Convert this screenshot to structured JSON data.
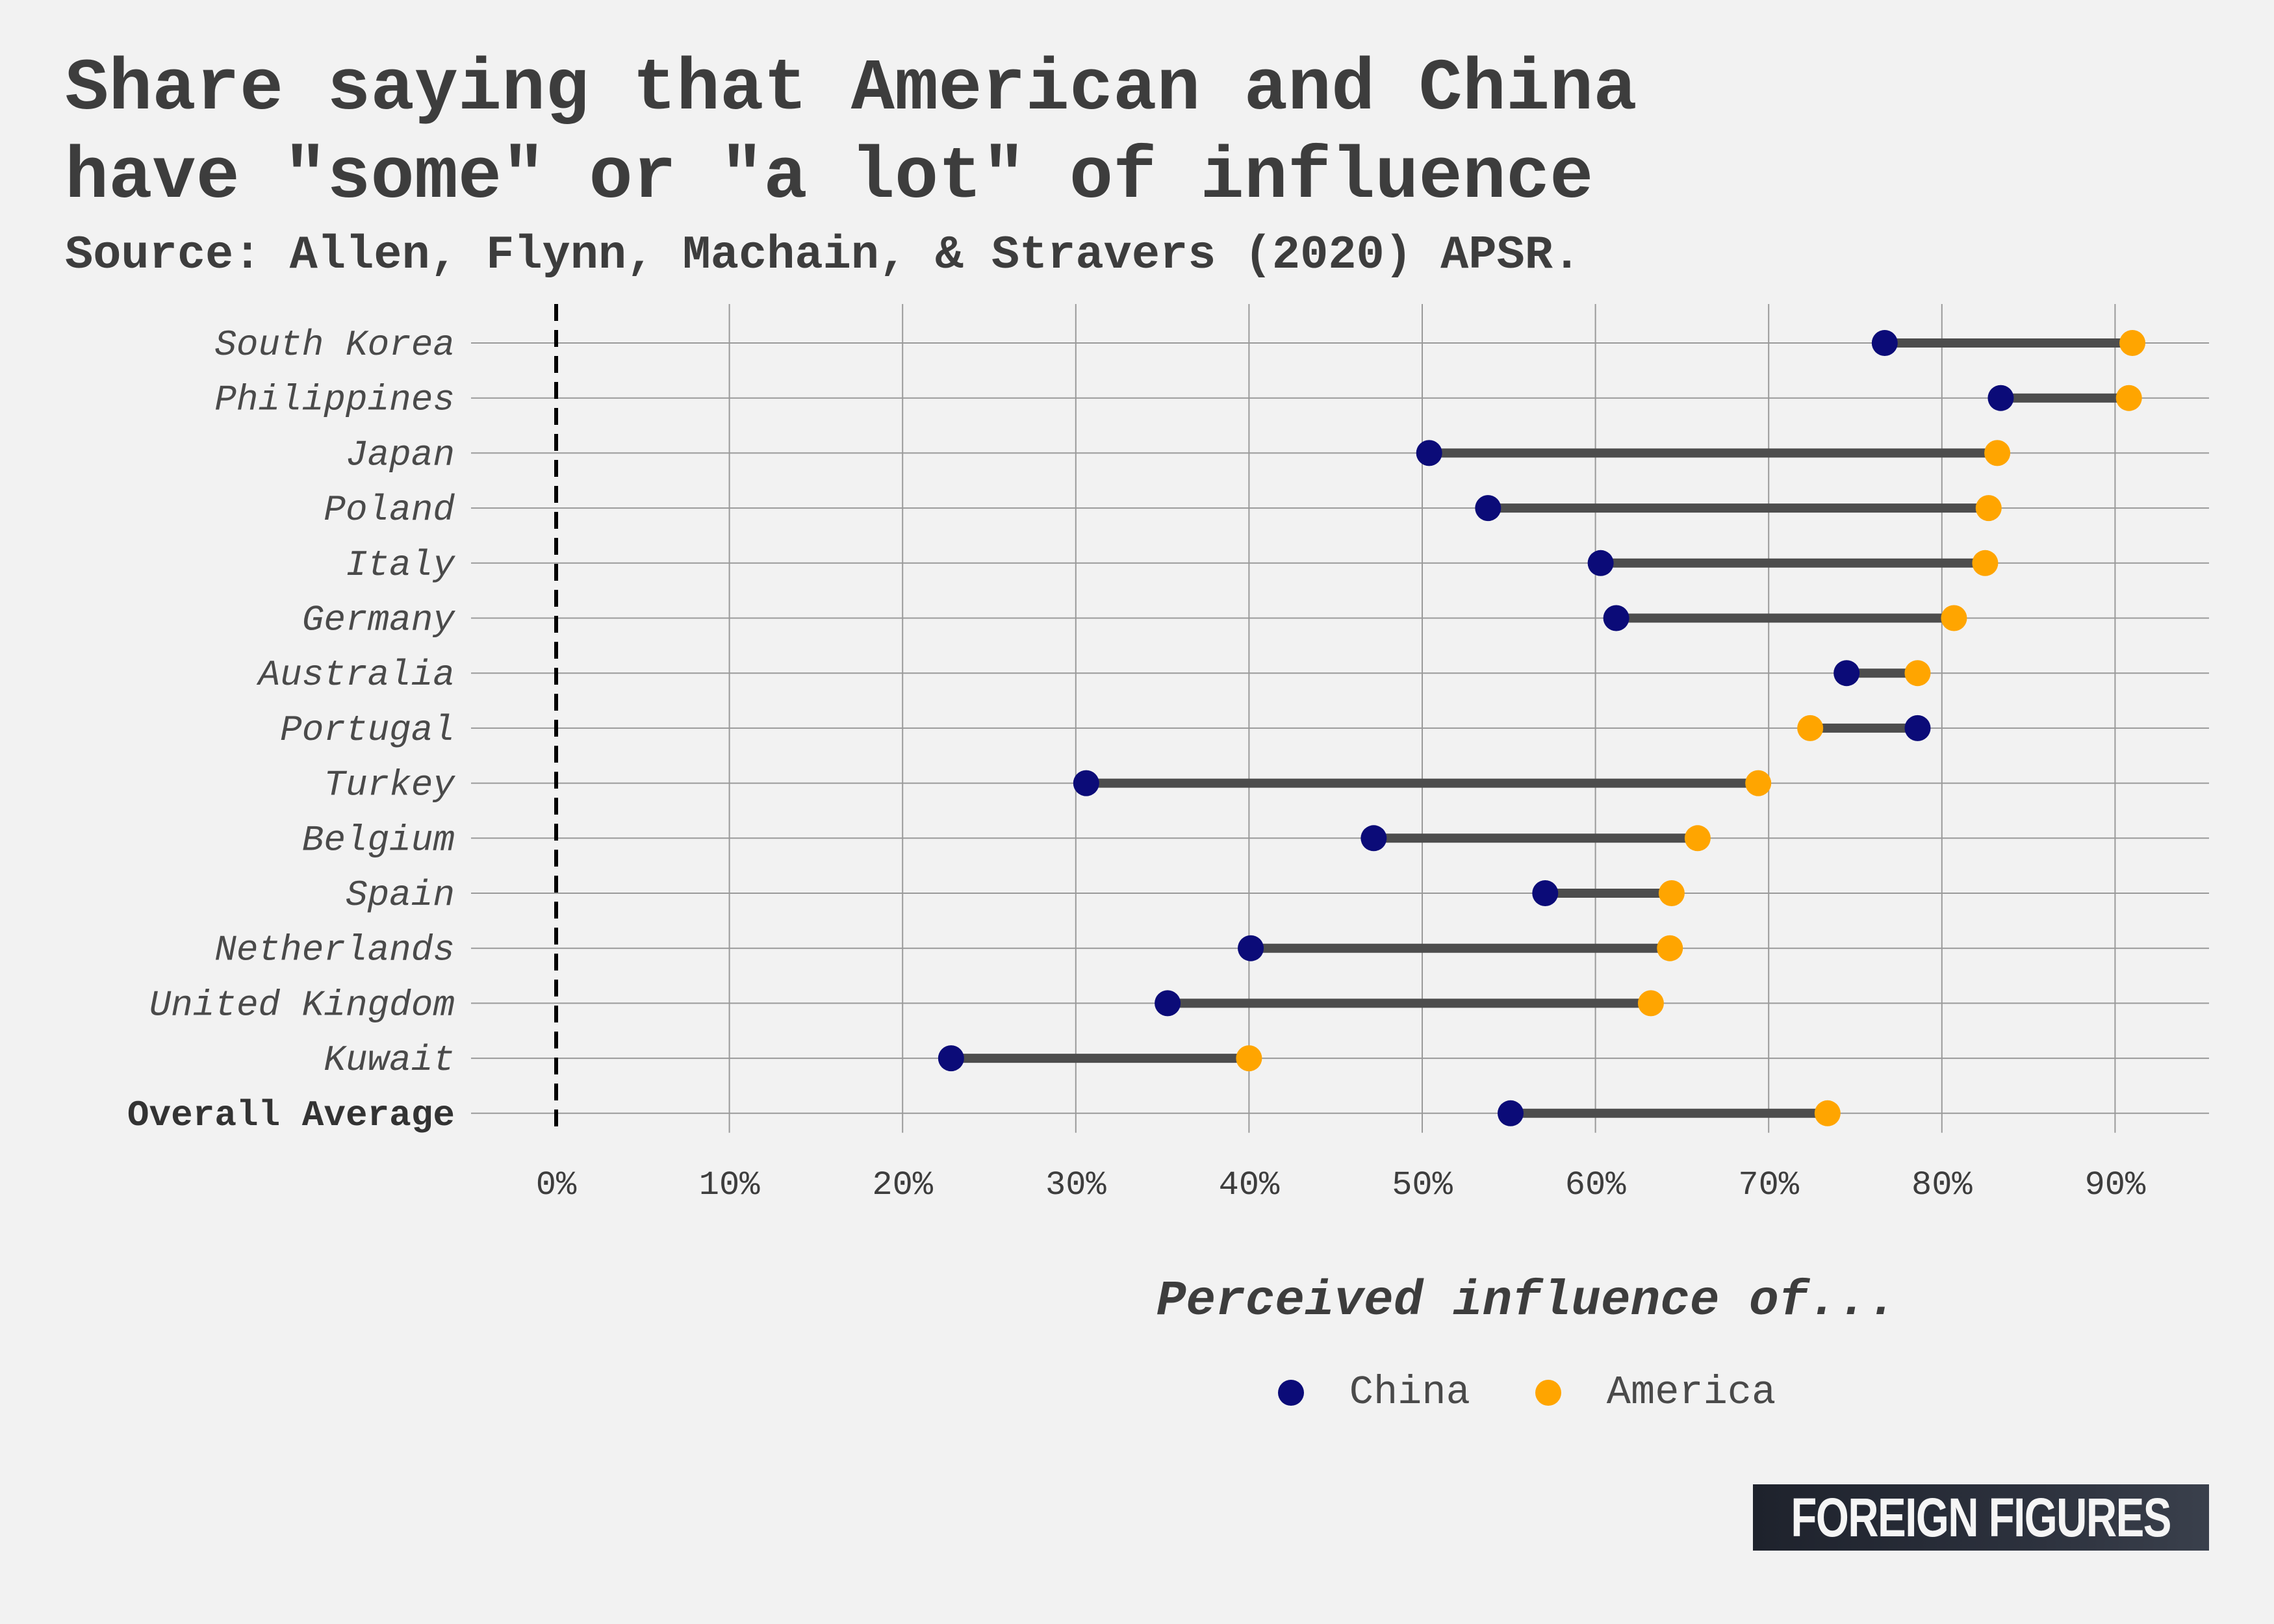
{
  "title": "Share saying that American and China\nhave \"some\" or \"a lot\" of influence",
  "subtitle": "Source: Allen, Flynn, Machain, & Stravers (2020) APSR.",
  "xlabel": "Perceived influence of...",
  "logo_text": "FOREIGN FIGURES",
  "legend": [
    {
      "label": "China",
      "color": "#0b0b78"
    },
    {
      "label": "America",
      "color": "#ffa500"
    }
  ],
  "chart_data": {
    "type": "dumbbell",
    "xlim": [
      0,
      95
    ],
    "xticks": [
      0,
      10,
      20,
      30,
      40,
      50,
      60,
      70,
      80,
      90
    ],
    "xtick_labels": [
      "0%",
      "10%",
      "20%",
      "30%",
      "40%",
      "50%",
      "60%",
      "70%",
      "80%",
      "90%"
    ],
    "reference_line": 0,
    "connector_color": "#4d4d4d",
    "categories": [
      "South Korea",
      "Philippines",
      "Japan",
      "Poland",
      "Italy",
      "Germany",
      "Australia",
      "Portugal",
      "Turkey",
      "Belgium",
      "Spain",
      "Netherlands",
      "United Kingdom",
      "Kuwait",
      "Overall Average"
    ],
    "series": [
      {
        "name": "China",
        "color": "#0b0b78",
        "values": [
          76.7,
          83.4,
          50.4,
          53.8,
          60.3,
          61.2,
          74.5,
          78.6,
          30.6,
          47.2,
          57.1,
          40.1,
          35.3,
          22.8,
          55.1
        ]
      },
      {
        "name": "America",
        "color": "#ffa500",
        "values": [
          91.0,
          90.8,
          83.2,
          82.7,
          82.5,
          80.7,
          78.6,
          72.4,
          69.4,
          65.9,
          64.4,
          64.3,
          63.2,
          40.0,
          73.4
        ]
      }
    ],
    "bold_categories": [
      "Overall Average"
    ]
  }
}
